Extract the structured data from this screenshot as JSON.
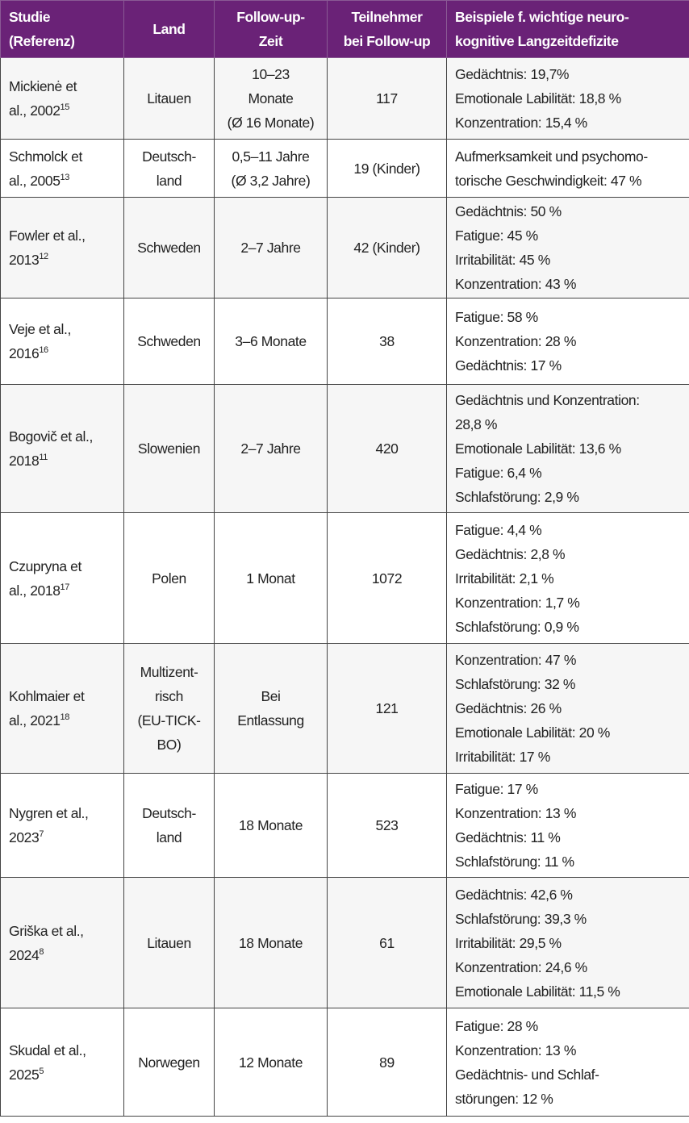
{
  "colors": {
    "header_bg": "#6a2277",
    "header_text": "#ffffff",
    "alt_row": "#f6f6f6"
  },
  "headers": [
    [
      "Studie",
      "(Referenz)"
    ],
    [
      "Land"
    ],
    [
      "Follow-up-",
      "Zeit"
    ],
    [
      "Teilnehmer",
      "bei Follow-up"
    ],
    [
      "Beispiele f. wichtige neuro-",
      "kognitive Langzeitdefizite"
    ]
  ],
  "rows": [
    {
      "study": [
        "Mickienė et",
        "al., 2002"
      ],
      "ref": "15",
      "land": [
        "Litauen"
      ],
      "zeit": [
        "10–23",
        "Monate",
        "(Ø 16 Monate)"
      ],
      "n": "117",
      "defizite": [
        "Gedächtnis: 19,7%",
        "Emotionale Labilität: 18,8 %",
        "Konzentration: 15,4 %"
      ]
    },
    {
      "study": [
        "Schmolck et",
        "al., 2005"
      ],
      "ref": "13",
      "land": [
        "Deutsch-",
        "land"
      ],
      "zeit": [
        "0,5–11 Jahre",
        "(Ø 3,2 Jahre)"
      ],
      "n": "19 (Kinder)",
      "defizite": [
        "Aufmerksamkeit und psychomo-",
        "torische Geschwindigkeit: 47 %"
      ]
    },
    {
      "study": [
        "Fowler et al.,",
        "2013"
      ],
      "ref": "12",
      "land": [
        "Schweden"
      ],
      "zeit": [
        "2–7 Jahre"
      ],
      "n": "42 (Kinder)",
      "defizite": [
        "Gedächtnis: 50 %",
        "Fatigue: 45 %",
        "Irritabilität: 45 %",
        "Konzentration: 43 %"
      ]
    },
    {
      "study": [
        "Veje et al.,",
        "2016"
      ],
      "ref": "16",
      "land": [
        "Schweden"
      ],
      "zeit": [
        "3–6 Monate"
      ],
      "n": "38",
      "defizite": [
        "Fatigue: 58 %",
        "Konzentration: 28 %",
        "Gedächtnis: 17 %"
      ]
    },
    {
      "study": [
        "Bogovič et al.,",
        "2018"
      ],
      "ref": "11",
      "land": [
        "Slowenien"
      ],
      "zeit": [
        "2–7 Jahre"
      ],
      "n": "420",
      "defizite": [
        "Gedächtnis und Konzentration:",
        "28,8 %",
        "Emotionale Labilität: 13,6 %",
        "Fatigue: 6,4 %",
        "Schlafstörung: 2,9 %"
      ]
    },
    {
      "study": [
        "Czupryna et",
        "al., 2018"
      ],
      "ref": "17",
      "land": [
        "Polen"
      ],
      "zeit": [
        "1 Monat"
      ],
      "n": "1072",
      "defizite": [
        "Fatigue: 4,4 %",
        "Gedächtnis: 2,8 %",
        "Irritabilität: 2,1 %",
        "Konzentration: 1,7 %",
        "Schlafstörung: 0,9 %"
      ]
    },
    {
      "study": [
        "Kohlmaier et",
        "al., 2021"
      ],
      "ref": "18",
      "land": [
        "Multizent-",
        "risch",
        "(EU-TICK-",
        "BO)"
      ],
      "zeit": [
        "Bei",
        "Entlassung"
      ],
      "n": "121",
      "defizite": [
        "Konzentration: 47 %",
        "Schlafstörung: 32 %",
        "Gedächtnis: 26 %",
        "Emotionale Labilität: 20 %",
        "Irritabilität: 17 %"
      ]
    },
    {
      "study": [
        "Nygren et al.,",
        "2023"
      ],
      "ref": "7",
      "land": [
        "Deutsch-",
        "land"
      ],
      "zeit": [
        "18 Monate"
      ],
      "n": "523",
      "defizite": [
        "Fatigue: 17 %",
        "Konzentration: 13 %",
        "Gedächtnis: 11 %",
        "Schlafstörung: 11 %"
      ]
    },
    {
      "study": [
        "Griška et al.,",
        "2024"
      ],
      "ref": "8",
      "land": [
        "Litauen"
      ],
      "zeit": [
        "18 Monate"
      ],
      "n": "61",
      "defizite": [
        "Gedächtnis: 42,6 %",
        "Schlafstörung: 39,3 %",
        "Irritabilität: 29,5 %",
        "Konzentration: 24,6 %",
        "Emotionale Labilität: 11,5 %"
      ]
    },
    {
      "study": [
        "Skudal et al.,",
        "2025"
      ],
      "ref": "5",
      "land": [
        "Norwegen"
      ],
      "zeit": [
        "12  Monate"
      ],
      "n": "89",
      "defizite": [
        "Fatigue: 28 %",
        "Konzentration: 13 %",
        "Gedächtnis- und Schlaf-",
        "störungen: 12 %"
      ]
    }
  ]
}
